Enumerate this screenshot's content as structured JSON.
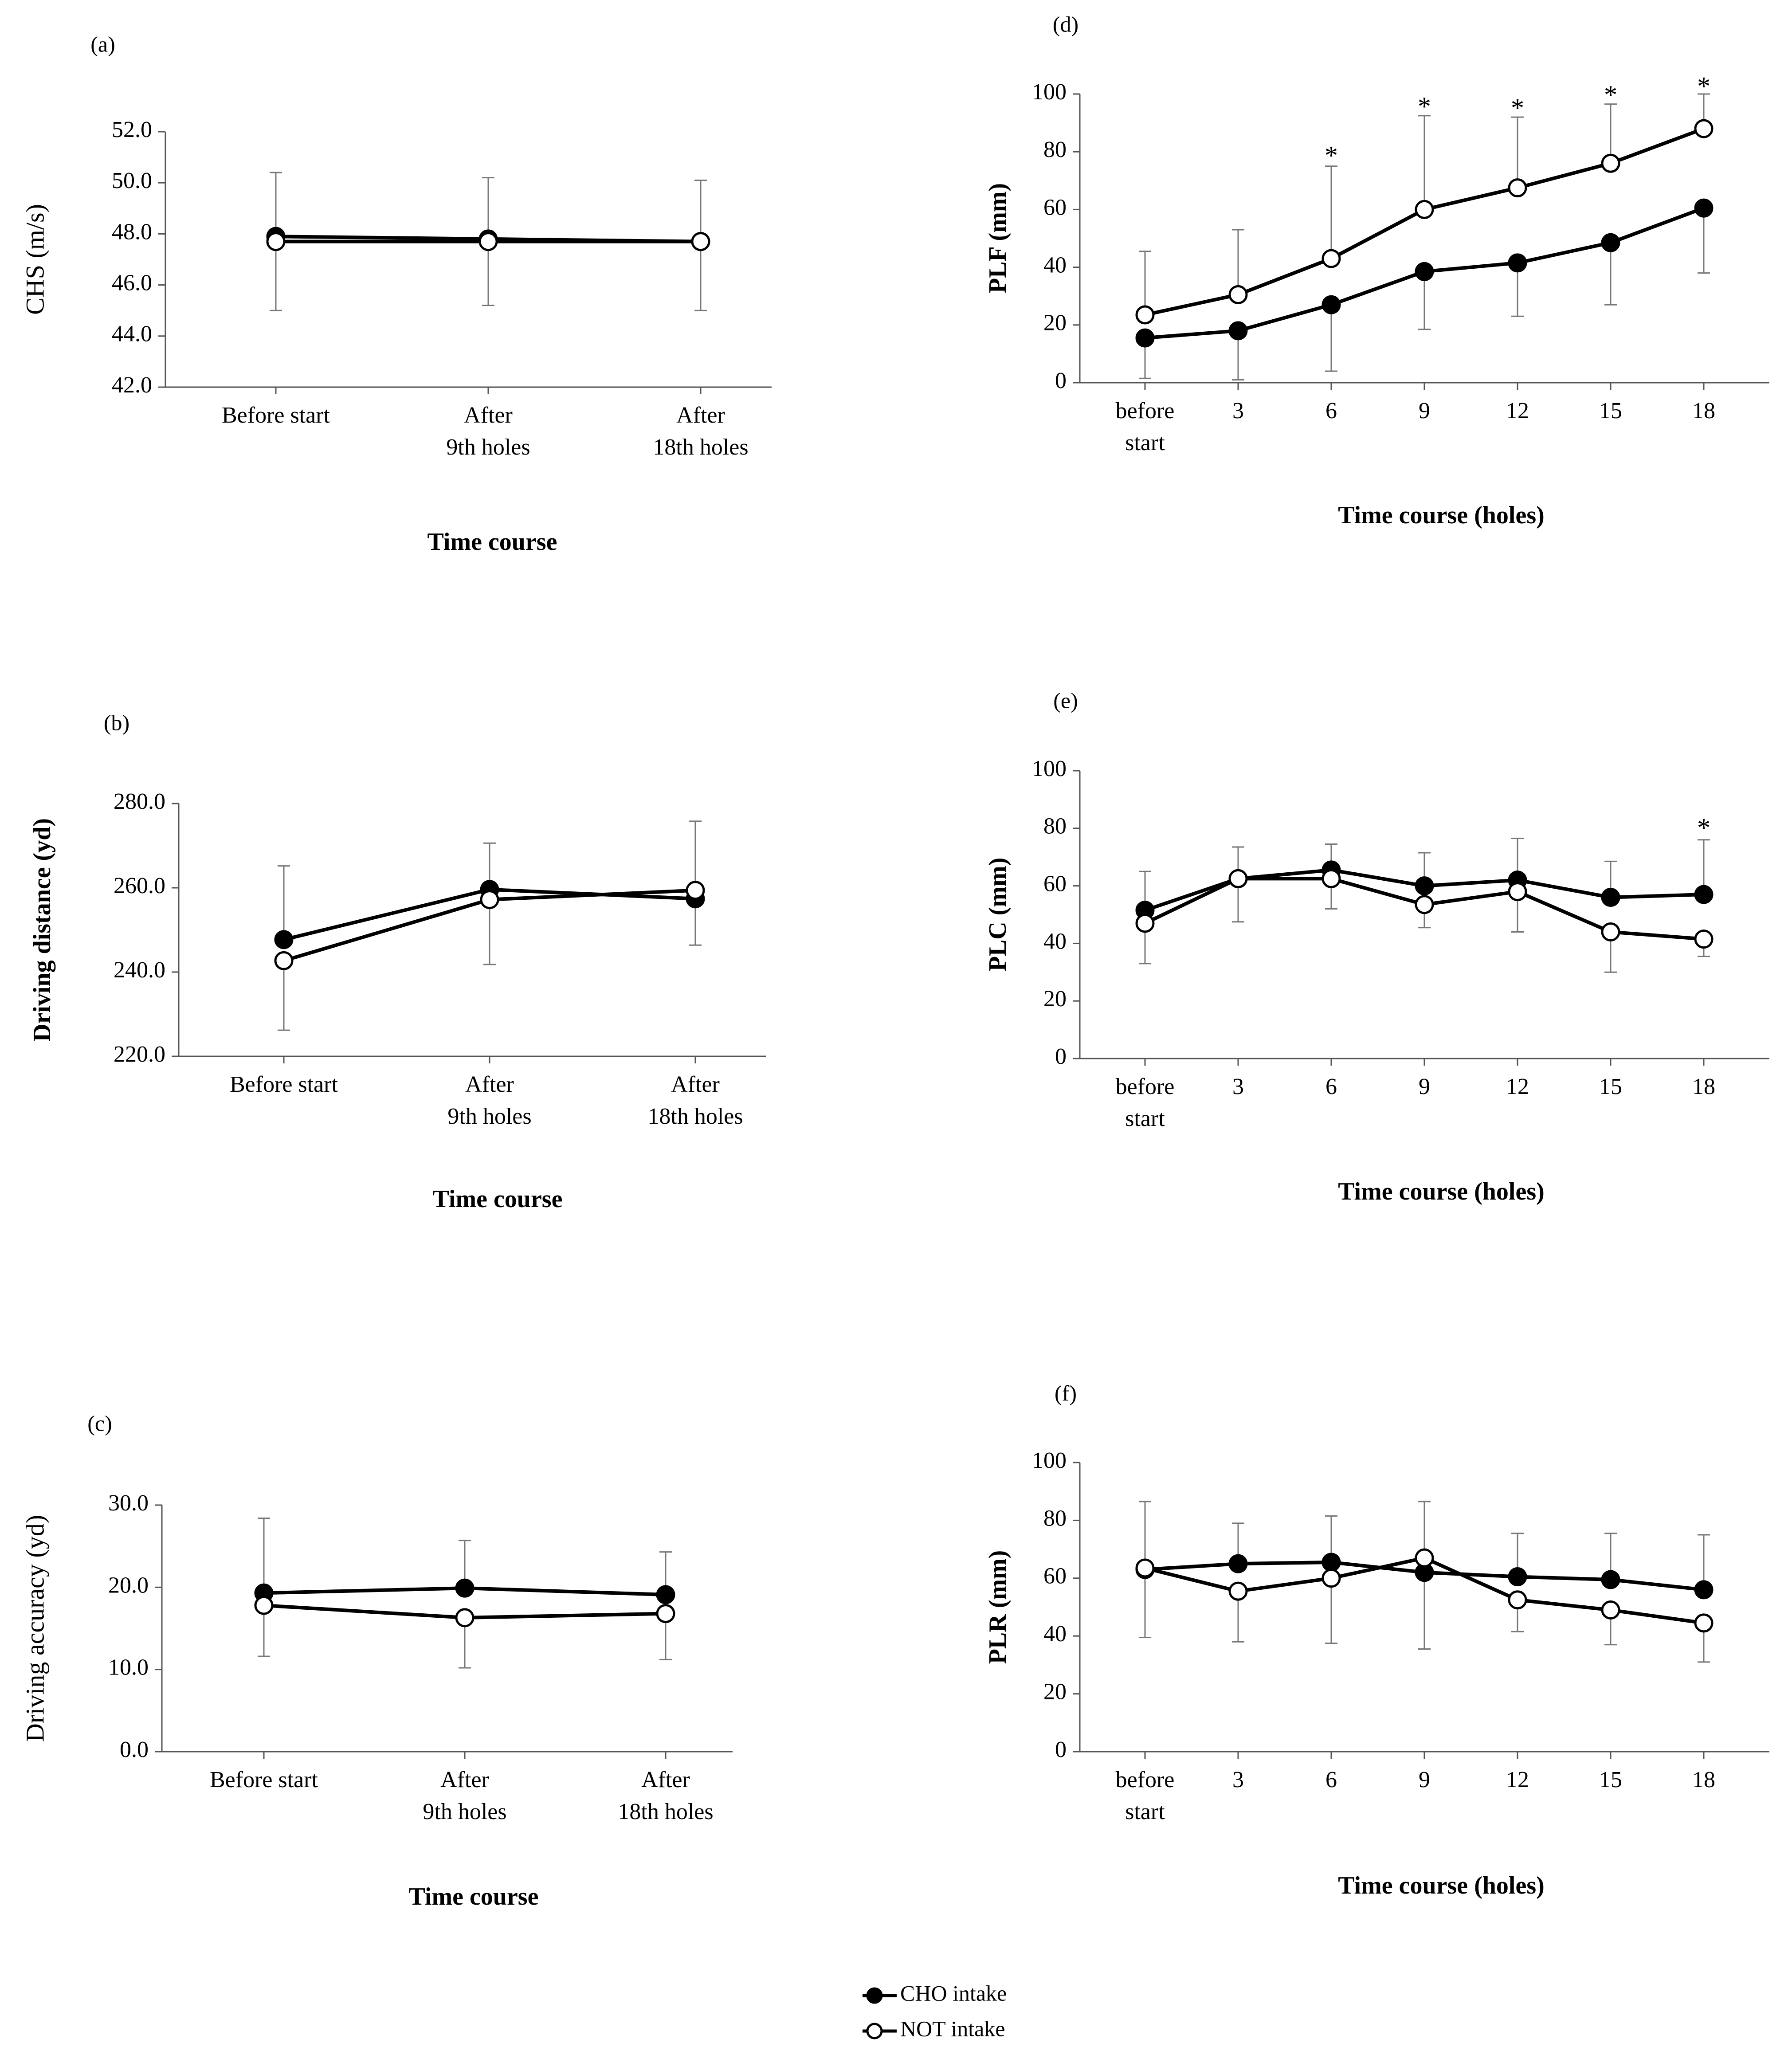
{
  "chart_data": [
    {
      "id": "a",
      "type": "line",
      "panel_label": "(a)",
      "title": "",
      "xlabel": "Time course",
      "ylabel": "CHS (m/s)",
      "categories": [
        [
          "Before start"
        ],
        [
          "After",
          "9th holes"
        ],
        [
          "After",
          "18th holes"
        ]
      ],
      "ylim": [
        42.0,
        52.0
      ],
      "yticks": [
        "42.0",
        "44.0",
        "46.0",
        "48.0",
        "50.0",
        "52.0"
      ],
      "series": [
        {
          "name": "CHO intake",
          "marker": "filled",
          "values": [
            47.9,
            47.8,
            47.7
          ],
          "err_up": [
            2.5,
            2.4,
            2.4
          ],
          "err_down": [
            0,
            0,
            0
          ]
        },
        {
          "name": "NOT intake",
          "marker": "open",
          "values": [
            47.7,
            47.7,
            47.7
          ],
          "err_up": [
            0,
            0,
            0
          ],
          "err_down": [
            2.7,
            2.5,
            2.7
          ]
        }
      ],
      "annotations": []
    },
    {
      "id": "b",
      "type": "line",
      "panel_label": "(b)",
      "title": "",
      "xlabel": "Time course",
      "ylabel": "Driving distance (yd)",
      "categories": [
        [
          "Before start"
        ],
        [
          "After",
          "9th holes"
        ],
        [
          "After",
          "18th holes"
        ]
      ],
      "ylim": [
        220.0,
        280.0
      ],
      "yticks": [
        "220.0",
        "240.0",
        "260.0",
        "280.0"
      ],
      "series": [
        {
          "name": "CHO intake",
          "marker": "filled",
          "values": [
            247.7,
            259.6,
            257.4
          ],
          "err_up": [
            17.5,
            11.0,
            18.4
          ],
          "err_down": [
            0,
            0,
            0
          ]
        },
        {
          "name": "NOT intake",
          "marker": "open",
          "values": [
            242.7,
            257.2,
            259.4
          ],
          "err_up": [
            0,
            0,
            0
          ],
          "err_down": [
            16.5,
            15.4,
            13.0
          ]
        }
      ],
      "annotations": []
    },
    {
      "id": "c",
      "type": "line",
      "panel_label": "(c)",
      "title": "",
      "xlabel": "Time course",
      "ylabel": "Driving accuracy (yd)",
      "categories": [
        [
          "Before start"
        ],
        [
          "After",
          "9th holes"
        ],
        [
          "After",
          "18th holes"
        ]
      ],
      "ylim": [
        0.0,
        30.0
      ],
      "yticks": [
        "0.0",
        "10.0",
        "20.0",
        "30.0"
      ],
      "series": [
        {
          "name": "CHO intake",
          "marker": "filled",
          "values": [
            19.3,
            19.9,
            19.1
          ],
          "err_up": [
            9.1,
            5.8,
            5.2
          ],
          "err_down": [
            0,
            0,
            0
          ]
        },
        {
          "name": "NOT intake",
          "marker": "open",
          "values": [
            17.8,
            16.3,
            16.8
          ],
          "err_up": [
            0,
            0,
            0
          ],
          "err_down": [
            6.2,
            6.1,
            5.6
          ]
        }
      ],
      "annotations": []
    },
    {
      "id": "d",
      "type": "line",
      "panel_label": "(d)",
      "title": "",
      "xlabel": "Time course (holes)",
      "ylabel": "PLF (mm)",
      "categories": [
        [
          "before",
          "start"
        ],
        [
          "3"
        ],
        [
          "6"
        ],
        [
          "9"
        ],
        [
          "12"
        ],
        [
          "15"
        ],
        [
          "18"
        ]
      ],
      "ylim": [
        0,
        100
      ],
      "yticks": [
        "0",
        "20",
        "40",
        "60",
        "80",
        "100"
      ],
      "series": [
        {
          "name": "CHO intake",
          "marker": "filled",
          "values": [
            15.5,
            18,
            27,
            38.5,
            41.5,
            48.5,
            60.5
          ],
          "err_up": [
            0,
            0,
            0,
            0,
            0,
            0,
            0
          ],
          "err_down": [
            14,
            17,
            23,
            20,
            18.5,
            21.5,
            22.5
          ]
        },
        {
          "name": "NOT intake",
          "marker": "open",
          "values": [
            23.5,
            30.5,
            43,
            60,
            67.5,
            76,
            88
          ],
          "err_up": [
            22,
            22.5,
            32,
            32.5,
            24.5,
            20.5,
            12
          ],
          "err_down": [
            0,
            0,
            0,
            0,
            0,
            0,
            0
          ]
        }
      ],
      "annotations": [
        {
          "text": "*",
          "category_index": 2,
          "y": 79
        },
        {
          "text": "*",
          "category_index": 3,
          "y": 96
        },
        {
          "text": "*",
          "category_index": 4,
          "y": 95.5
        },
        {
          "text": "*",
          "category_index": 5,
          "y": 100
        },
        {
          "text": "*",
          "category_index": 6,
          "y": 103
        }
      ]
    },
    {
      "id": "e",
      "type": "line",
      "panel_label": "(e)",
      "title": "",
      "xlabel": "Time course (holes)",
      "ylabel": "PLC (mm)",
      "categories": [
        [
          "before",
          "start"
        ],
        [
          "3"
        ],
        [
          "6"
        ],
        [
          "9"
        ],
        [
          "12"
        ],
        [
          "15"
        ],
        [
          "18"
        ]
      ],
      "ylim": [
        0,
        100
      ],
      "yticks": [
        "0",
        "20",
        "40",
        "60",
        "80",
        "100"
      ],
      "series": [
        {
          "name": "CHO intake",
          "marker": "filled",
          "values": [
            51.5,
            62.5,
            65.5,
            60,
            62,
            56,
            57
          ],
          "err_up": [
            13.5,
            11,
            9,
            11.5,
            14.5,
            12.5,
            19
          ],
          "err_down": [
            0,
            0,
            0,
            0,
            0,
            0,
            0
          ]
        },
        {
          "name": "NOT intake",
          "marker": "open",
          "values": [
            47,
            62.5,
            62.5,
            53.5,
            58,
            44,
            41.5
          ],
          "err_up": [
            0,
            0,
            0,
            0,
            0,
            0,
            0
          ],
          "err_down": [
            14,
            15,
            10.5,
            8,
            14,
            14,
            6
          ]
        }
      ],
      "annotations": [
        {
          "text": "*",
          "category_index": 6,
          "y": 80.5
        }
      ]
    },
    {
      "id": "f",
      "type": "line",
      "panel_label": "(f)",
      "title": "",
      "xlabel": "Time course (holes)",
      "ylabel": "PLR (mm)",
      "categories": [
        [
          "before",
          "start"
        ],
        [
          "3"
        ],
        [
          "6"
        ],
        [
          "9"
        ],
        [
          "12"
        ],
        [
          "15"
        ],
        [
          "18"
        ]
      ],
      "ylim": [
        0,
        100
      ],
      "yticks": [
        "0",
        "20",
        "40",
        "60",
        "80",
        "100"
      ],
      "series": [
        {
          "name": "CHO intake",
          "marker": "filled",
          "values": [
            63,
            65,
            65.5,
            62,
            60.5,
            59.5,
            56
          ],
          "err_up": [
            23.5,
            14,
            16,
            0,
            15,
            16,
            19
          ],
          "err_down": [
            0,
            0,
            0,
            0,
            0,
            0,
            0
          ]
        },
        {
          "name": "NOT intake",
          "marker": "open",
          "values": [
            63.5,
            55.5,
            60,
            67,
            52.5,
            49,
            44.5
          ],
          "err_up": [
            0,
            0,
            0,
            19.5,
            0,
            0,
            0
          ],
          "err_down": [
            24,
            17.5,
            22.5,
            31.5,
            11,
            12,
            13.5
          ]
        }
      ],
      "annotations": []
    }
  ],
  "legend": {
    "items": [
      {
        "label": "CHO intake",
        "marker": "filled"
      },
      {
        "label": "NOT intake",
        "marker": "open"
      }
    ]
  }
}
